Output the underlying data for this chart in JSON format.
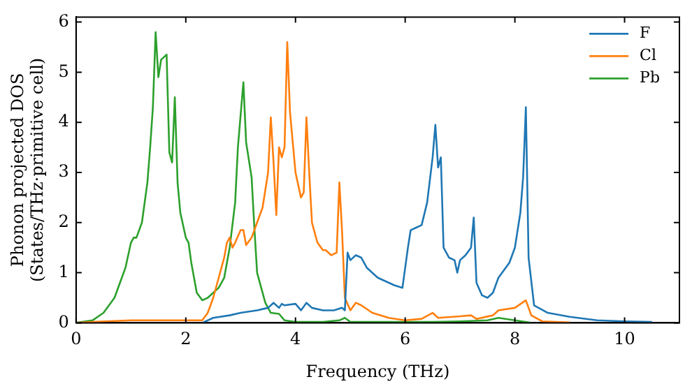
{
  "chart_data": {
    "type": "line",
    "xlabel": "Frequency (THz)",
    "ylabel": "Phonon projected DOS\n(States/THz·primitive cell)",
    "xlim": [
      0,
      11
    ],
    "xticks": [
      0,
      2,
      4,
      6,
      8,
      10
    ],
    "ylim": [
      0,
      6.1
    ],
    "yticks": [
      0,
      1,
      2,
      3,
      4,
      5,
      6
    ],
    "grid": false,
    "legend": "top right",
    "marker": "none",
    "line_style": "solid",
    "series": [
      {
        "name": "F",
        "color": "#1f77b4",
        "x": [
          2.3,
          2.5,
          2.8,
          3.0,
          3.3,
          3.5,
          3.6,
          3.7,
          3.75,
          3.8,
          4.0,
          4.1,
          4.2,
          4.3,
          4.5,
          4.7,
          4.85,
          4.9,
          4.95,
          5.0,
          5.1,
          5.2,
          5.3,
          5.5,
          5.8,
          5.95,
          6.05,
          6.1,
          6.2,
          6.3,
          6.4,
          6.5,
          6.55,
          6.6,
          6.65,
          6.7,
          6.8,
          6.9,
          6.95,
          7.0,
          7.1,
          7.2,
          7.25,
          7.3,
          7.4,
          7.5,
          7.6,
          7.7,
          7.9,
          8.0,
          8.1,
          8.15,
          8.2,
          8.25,
          8.35,
          8.6,
          9.0,
          9.5,
          10.0,
          10.5
        ],
        "values": [
          0,
          0.1,
          0.15,
          0.2,
          0.25,
          0.3,
          0.4,
          0.3,
          0.38,
          0.35,
          0.38,
          0.25,
          0.4,
          0.3,
          0.25,
          0.25,
          0.3,
          0.25,
          1.4,
          1.25,
          1.35,
          1.3,
          1.1,
          0.9,
          0.75,
          0.7,
          1.5,
          1.85,
          1.9,
          1.95,
          2.4,
          3.3,
          3.95,
          3.1,
          3.3,
          1.5,
          1.3,
          1.25,
          1.0,
          1.25,
          1.35,
          1.5,
          2.1,
          0.8,
          0.55,
          0.5,
          0.6,
          0.9,
          1.2,
          1.5,
          2.2,
          2.9,
          4.3,
          1.3,
          0.35,
          0.2,
          0.12,
          0.05,
          0.03,
          0.02
        ]
      },
      {
        "name": "Cl",
        "color": "#ff7f0e",
        "x": [
          0,
          0.3,
          1.0,
          1.5,
          2.3,
          2.4,
          2.5,
          2.6,
          2.7,
          2.75,
          2.8,
          2.85,
          2.9,
          3.0,
          3.05,
          3.1,
          3.2,
          3.3,
          3.4,
          3.5,
          3.55,
          3.6,
          3.65,
          3.7,
          3.75,
          3.8,
          3.85,
          3.9,
          3.95,
          4.0,
          4.1,
          4.15,
          4.2,
          4.25,
          4.3,
          4.4,
          4.5,
          4.55,
          4.65,
          4.75,
          4.8,
          4.85,
          4.9,
          5.0,
          5.1,
          5.2,
          5.4,
          5.7,
          6.0,
          6.3,
          6.5,
          6.6,
          7.0,
          7.2,
          7.3,
          7.6,
          7.7,
          8.0,
          8.2,
          8.3,
          8.5,
          9.0
        ],
        "values": [
          0,
          0.02,
          0.05,
          0.05,
          0.05,
          0.2,
          0.5,
          0.9,
          1.3,
          1.6,
          1.7,
          1.5,
          1.6,
          1.85,
          1.85,
          1.55,
          1.7,
          2.0,
          2.3,
          3.0,
          4.1,
          3.2,
          2.15,
          3.5,
          3.3,
          3.5,
          5.6,
          4.2,
          3.6,
          3.0,
          2.5,
          2.6,
          4.1,
          3.0,
          2.0,
          1.6,
          1.45,
          1.45,
          1.35,
          1.4,
          2.8,
          1.8,
          0.5,
          0.25,
          0.4,
          0.35,
          0.2,
          0.1,
          0.05,
          0.08,
          0.2,
          0.1,
          0.13,
          0.15,
          0.08,
          0.15,
          0.25,
          0.3,
          0.45,
          0.15,
          0.03,
          0.01
        ]
      },
      {
        "name": "Pb",
        "color": "#2ca02c",
        "x": [
          0,
          0.3,
          0.5,
          0.7,
          0.8,
          0.9,
          1.0,
          1.05,
          1.1,
          1.2,
          1.3,
          1.35,
          1.4,
          1.45,
          1.5,
          1.55,
          1.6,
          1.65,
          1.7,
          1.75,
          1.8,
          1.85,
          1.9,
          2.0,
          2.05,
          2.1,
          2.2,
          2.3,
          2.4,
          2.6,
          2.7,
          2.8,
          2.9,
          2.95,
          3.05,
          3.1,
          3.2,
          3.25,
          3.3,
          3.45,
          3.55,
          3.7,
          3.8,
          4.0,
          4.5,
          4.8,
          4.9,
          5.0,
          6.5,
          7.0,
          7.5,
          7.7,
          8.0,
          8.3
        ],
        "values": [
          0,
          0.05,
          0.2,
          0.5,
          0.8,
          1.1,
          1.6,
          1.7,
          1.7,
          2.0,
          2.8,
          3.5,
          4.3,
          5.8,
          4.9,
          5.25,
          5.3,
          5.35,
          3.4,
          3.2,
          4.5,
          2.8,
          2.2,
          1.7,
          1.6,
          1.2,
          0.6,
          0.45,
          0.5,
          0.7,
          0.9,
          1.5,
          2.4,
          3.5,
          4.8,
          3.6,
          2.9,
          1.9,
          1.0,
          0.4,
          0.2,
          0.18,
          0.05,
          0.02,
          0.02,
          0.05,
          0.1,
          0.02,
          0.02,
          0.03,
          0.05,
          0.1,
          0.05,
          0
        ]
      }
    ]
  }
}
